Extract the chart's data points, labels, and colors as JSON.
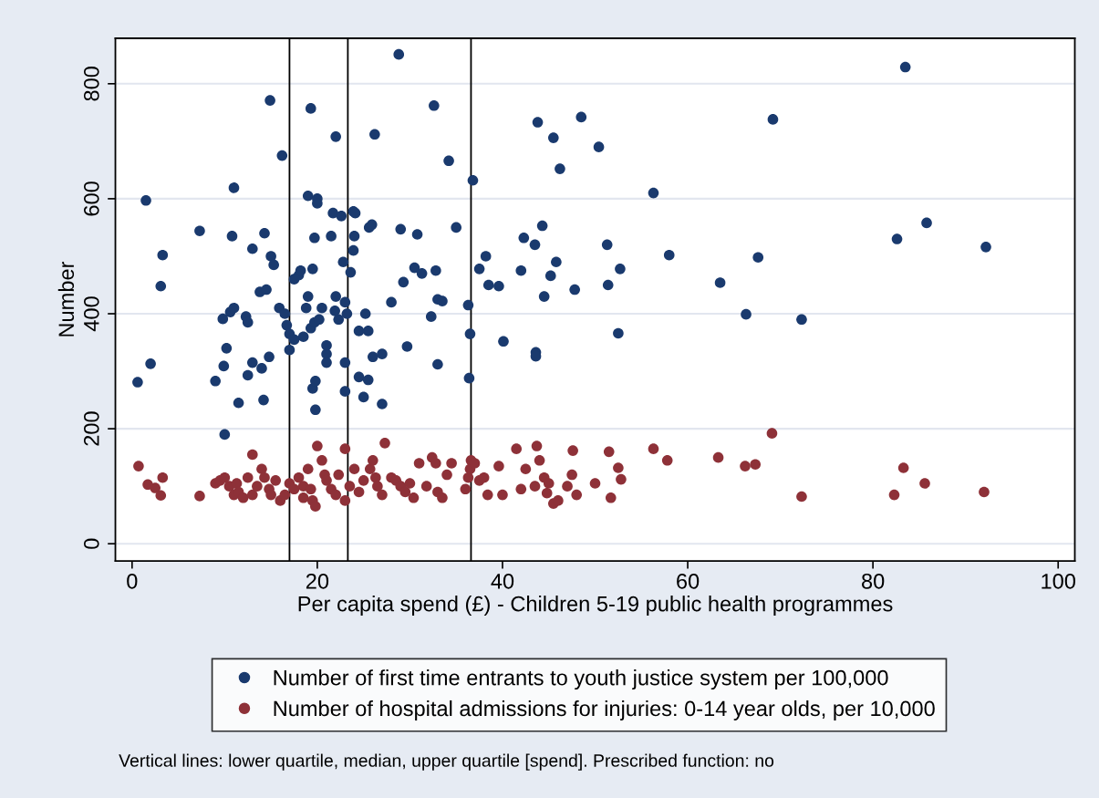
{
  "chart_data": {
    "type": "scatter",
    "xlabel": "Per capita spend (£) - Children 5-19 public health programmes",
    "ylabel": "Number",
    "xlim": [
      -1.8,
      101.8
    ],
    "ylim": [
      -30,
      879
    ],
    "xticks": [
      0,
      20,
      40,
      60,
      80,
      100
    ],
    "yticks": [
      0,
      200,
      400,
      600,
      800
    ],
    "grid": "y",
    "legend": "bottom",
    "marker": "circle",
    "ref_lines": [
      {
        "axis": "x",
        "value": 17.0,
        "color": "#000000"
      },
      {
        "axis": "x",
        "value": 23.3,
        "color": "#000000"
      },
      {
        "axis": "x",
        "value": 36.6,
        "color": "#000000"
      }
    ],
    "annotations": [
      "Vertical lines: lower quartile, median, upper quartile [spend]. Prescribed function: no"
    ],
    "series": [
      {
        "name": "Number of first time entrants to youth justice system per 100,000",
        "color": "#1a3a6e",
        "x": [
          1.5,
          0.6,
          2.0,
          3.3,
          3.1,
          7.3,
          9.0,
          9.8,
          9.9,
          10.2,
          10.0,
          10.6,
          11.0,
          10.8,
          11.0,
          11.5,
          12.3,
          12.5,
          12.5,
          13.0,
          13.0,
          13.8,
          14.0,
          14.3,
          14.5,
          14.2,
          14.8,
          14.9,
          15.0,
          15.3,
          16.2,
          15.9,
          16.5,
          16.7,
          17.0,
          17.0,
          17.5,
          17.5,
          18.0,
          18.2,
          18.5,
          18.8,
          19.0,
          19.0,
          19.3,
          19.3,
          19.5,
          19.5,
          19.7,
          19.7,
          19.8,
          19.8,
          20.0,
          20.0,
          20.2,
          20.5,
          21.0,
          21.0,
          21.0,
          21.5,
          21.7,
          21.9,
          22.0,
          22.0,
          22.3,
          22.6,
          22.8,
          23.0,
          23.2,
          23.0,
          23.0,
          23.6,
          23.9,
          24.1,
          23.9,
          24.0,
          24.5,
          24.5,
          25.2,
          25.0,
          25.5,
          25.5,
          25.6,
          25.9,
          26.2,
          26.0,
          27.0,
          27.0,
          28.0,
          28.8,
          29.0,
          29.3,
          29.7,
          30.5,
          30.8,
          31.3,
          32.3,
          32.6,
          32.8,
          33.0,
          33.0,
          33.5,
          34.2,
          35.0,
          36.3,
          36.5,
          36.4,
          36.8,
          37.5,
          38.2,
          38.5,
          39.6,
          40.1,
          42.0,
          42.3,
          43.5,
          43.6,
          43.6,
          43.8,
          44.3,
          44.5,
          45.2,
          45.5,
          45.8,
          46.2,
          47.8,
          48.5,
          50.4,
          51.3,
          51.4,
          52.5,
          52.7,
          56.3,
          58.0,
          63.5,
          66.3,
          67.6,
          69.2,
          72.3,
          82.6,
          83.5,
          85.8,
          92.2
        ],
        "values": [
          597,
          281,
          313,
          502,
          448,
          544,
          283,
          391,
          309,
          340,
          190,
          403,
          410,
          535,
          619,
          245,
          395,
          385,
          293,
          513,
          315,
          438,
          305,
          540,
          442,
          250,
          325,
          771,
          500,
          485,
          675,
          410,
          400,
          380,
          365,
          337,
          355,
          460,
          467,
          475,
          360,
          410,
          430,
          605,
          757,
          375,
          270,
          478,
          385,
          532,
          233,
          283,
          600,
          592,
          390,
          410,
          330,
          345,
          315,
          535,
          575,
          405,
          708,
          430,
          390,
          570,
          490,
          420,
          400,
          315,
          265,
          472,
          578,
          575,
          510,
          535,
          370,
          290,
          400,
          255,
          370,
          285,
          550,
          555,
          712,
          325,
          330,
          243,
          420,
          851,
          547,
          455,
          343,
          480,
          538,
          470,
          395,
          762,
          475,
          425,
          312,
          422,
          666,
          550,
          415,
          365,
          288,
          632,
          478,
          500,
          450,
          448,
          352,
          475,
          532,
          520,
          333,
          326,
          733,
          553,
          430,
          466,
          706,
          490,
          652,
          442,
          742,
          690,
          520,
          450,
          366,
          478,
          610,
          502,
          454,
          399,
          498,
          738,
          390,
          530,
          829,
          558,
          516
        ]
      },
      {
        "name": "Number of hospital admissions for injuries: 0-14 year olds, per 10,000",
        "color": "#8e3138",
        "x": [
          0.7,
          1.7,
          2.5,
          3.1,
          3.3,
          7.3,
          9.0,
          9.5,
          10.0,
          10.5,
          11.0,
          11.3,
          11.5,
          12.0,
          12.5,
          13.0,
          13.0,
          13.5,
          14.0,
          14.3,
          14.8,
          15.0,
          15.5,
          16.0,
          16.5,
          17.0,
          17.5,
          18.0,
          18.5,
          18.5,
          19.0,
          19.3,
          19.5,
          19.8,
          20.0,
          20.5,
          20.8,
          21.0,
          21.5,
          22.0,
          22.3,
          23.0,
          23.0,
          23.5,
          24.0,
          24.5,
          25.0,
          25.7,
          26.0,
          26.3,
          26.5,
          27.0,
          27.3,
          28.0,
          28.5,
          29.0,
          29.5,
          30.0,
          30.4,
          31.0,
          31.8,
          32.4,
          32.8,
          33.0,
          33.5,
          34.0,
          34.5,
          36.0,
          36.3,
          36.6,
          36.5,
          37.0,
          37.5,
          38.0,
          38.4,
          39.6,
          40.0,
          41.5,
          42.0,
          42.5,
          43.5,
          43.7,
          44.0,
          44.5,
          44.8,
          45.0,
          45.5,
          46.0,
          47.0,
          47.6,
          47.5,
          48.0,
          50.0,
          51.5,
          51.7,
          52.5,
          52.8,
          56.3,
          57.8,
          63.3,
          66.2,
          67.3,
          69.1,
          72.3,
          82.3,
          83.3,
          85.6,
          92.0
        ],
        "values": [
          135,
          103,
          97,
          84,
          115,
          83,
          105,
          110,
          115,
          100,
          85,
          105,
          90,
          80,
          115,
          155,
          85,
          100,
          130,
          115,
          95,
          85,
          110,
          75,
          85,
          105,
          95,
          115,
          80,
          100,
          130,
          95,
          75,
          65,
          170,
          145,
          120,
          110,
          95,
          85,
          120,
          165,
          75,
          100,
          130,
          90,
          110,
          130,
          145,
          115,
          100,
          85,
          175,
          115,
          110,
          100,
          90,
          105,
          80,
          140,
          100,
          150,
          140,
          90,
          80,
          120,
          140,
          95,
          115,
          145,
          130,
          140,
          110,
          115,
          85,
          135,
          85,
          165,
          95,
          130,
          100,
          170,
          145,
          115,
          88,
          105,
          70,
          75,
          100,
          162,
          120,
          85,
          105,
          160,
          80,
          132,
          112,
          165,
          145,
          150,
          135,
          138,
          192,
          82,
          85,
          132,
          105,
          90
        ]
      }
    ]
  }
}
